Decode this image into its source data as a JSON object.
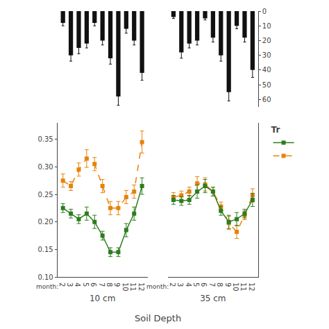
{
  "xlabel": "Soil Depth",
  "chart_data": [
    {
      "type": "bar",
      "categories": [
        2,
        3,
        4,
        5,
        6,
        7,
        8,
        9,
        10,
        11,
        12
      ],
      "series": [
        {
          "color": "#111111",
          "values": [
            8,
            30,
            25,
            22,
            8,
            20,
            32,
            58,
            12,
            20,
            42
          ],
          "errors": [
            2,
            4,
            4,
            3,
            2,
            3,
            4,
            6,
            3,
            3,
            5
          ]
        }
      ],
      "ylim": [
        65,
        0
      ],
      "yticks": [
        0,
        10,
        20,
        30,
        40,
        50,
        60
      ],
      "grid": false,
      "tick_labels": false
    },
    {
      "type": "bar",
      "categories": [
        2,
        3,
        4,
        5,
        6,
        7,
        8,
        9,
        10,
        11,
        12
      ],
      "series": [
        {
          "color": "#111111",
          "values": [
            4,
            28,
            22,
            20,
            5,
            18,
            30,
            55,
            10,
            18,
            40
          ],
          "errors": [
            1,
            4,
            3,
            3,
            1,
            3,
            4,
            6,
            2,
            3,
            5
          ]
        }
      ],
      "ylim": [
        65,
        0
      ],
      "yticks": [
        0,
        10,
        20,
        30,
        40,
        50,
        60
      ],
      "grid": false,
      "tick_labels": "y"
    },
    {
      "type": "line",
      "xlabel": "10 cm",
      "annotations": [
        "month:"
      ],
      "categories": [
        2,
        3,
        4,
        5,
        6,
        7,
        8,
        9,
        10,
        11,
        12
      ],
      "series": [
        {
          "color": "#e8820a",
          "line_style": "dashed",
          "marker": "square",
          "values": [
            0.275,
            0.265,
            0.295,
            0.315,
            0.305,
            0.265,
            0.225,
            0.225,
            0.245,
            0.255,
            0.345
          ],
          "errors": [
            0.012,
            0.008,
            0.012,
            0.016,
            0.012,
            0.012,
            0.012,
            0.012,
            0.012,
            0.012,
            0.02
          ]
        },
        {
          "color": "#2d7d1e",
          "line_style": "solid",
          "marker": "square",
          "values": [
            0.225,
            0.215,
            0.205,
            0.215,
            0.2,
            0.175,
            0.145,
            0.145,
            0.185,
            0.215,
            0.265
          ],
          "errors": [
            0.008,
            0.008,
            0.008,
            0.012,
            0.012,
            0.008,
            0.008,
            0.008,
            0.012,
            0.012,
            0.015
          ]
        }
      ],
      "ylim": [
        0.1,
        0.38
      ],
      "yticks": [
        {
          "value": 0.1,
          "label": "0.10"
        },
        0.15,
        {
          "value": 0.2,
          "label": "0.20"
        },
        0.25,
        {
          "value": 0.3,
          "label": "0.30"
        },
        0.35
      ],
      "grid": false,
      "tick_labels": true,
      "legend": "right",
      "legend_title": "Tr"
    },
    {
      "type": "line",
      "xlabel": "35 cm",
      "annotations": [
        "month:"
      ],
      "categories": [
        2,
        3,
        4,
        5,
        6,
        7,
        8,
        9,
        10,
        11,
        12
      ],
      "series": [
        {
          "color": "#e8820a",
          "line_style": "dashed",
          "marker": "square",
          "values": [
            0.245,
            0.248,
            0.255,
            0.27,
            0.268,
            0.255,
            0.228,
            0.198,
            0.182,
            0.212,
            0.248
          ],
          "errors": [
            0.008,
            0.008,
            0.008,
            0.012,
            0.012,
            0.008,
            0.008,
            0.012,
            0.012,
            0.008,
            0.012
          ]
        },
        {
          "color": "#2d7d1e",
          "line_style": "solid",
          "marker": "square",
          "values": [
            0.24,
            0.238,
            0.24,
            0.255,
            0.265,
            0.255,
            0.22,
            0.2,
            0.205,
            0.215,
            0.24
          ],
          "errors": [
            0.008,
            0.008,
            0.008,
            0.012,
            0.012,
            0.008,
            0.008,
            0.012,
            0.012,
            0.008,
            0.012
          ]
        }
      ],
      "ylim": [
        0.1,
        0.38
      ],
      "yticks": [
        {
          "value": 0.1,
          "label": "0.10"
        },
        0.15,
        {
          "value": 0.2,
          "label": "0.20"
        },
        0.25,
        {
          "value": 0.3,
          "label": "0.30"
        },
        0.35
      ],
      "grid": false,
      "tick_labels": "x"
    }
  ]
}
